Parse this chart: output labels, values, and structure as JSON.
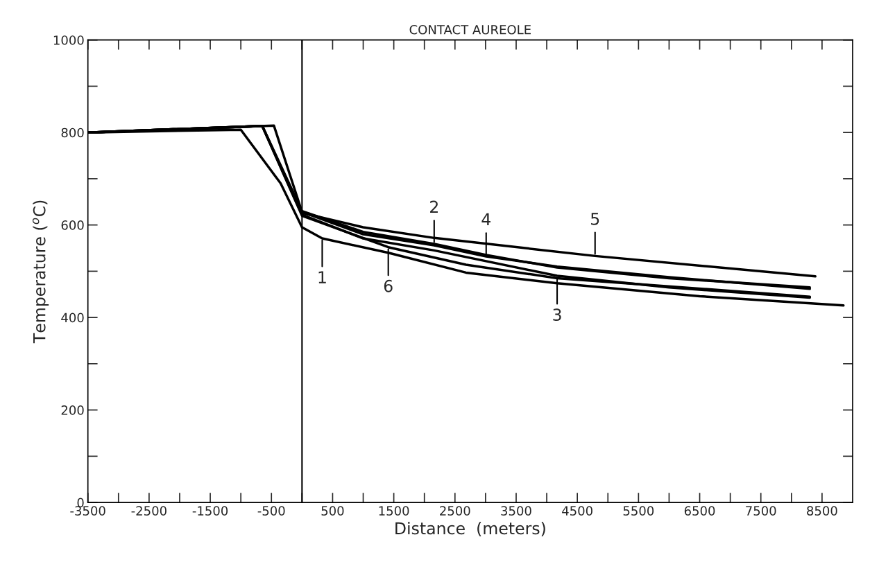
{
  "chart_data": {
    "type": "line",
    "title": "CONTACT AUREOLE",
    "xlabel": "Distance  (meters)",
    "ylabel": "Temperature ($^{o}$C)",
    "series": [
      {
        "color": "#000000",
        "x": [
          -3500,
          -1000,
          -350,
          0,
          330,
          1410,
          2680,
          4170,
          6500,
          8850
        ],
        "values": [
          800,
          806,
          690,
          595,
          571,
          540,
          497,
          474,
          446,
          426
        ]
      },
      {
        "color": "#000000",
        "x": [
          -3500,
          -650,
          0,
          1000,
          2160,
          3010,
          4170,
          6000,
          8300
        ],
        "values": [
          800,
          814,
          630,
          585,
          559,
          535,
          508,
          485,
          465
        ]
      },
      {
        "color": "#000000",
        "x": [
          -3500,
          -650,
          0,
          1000,
          2160,
          4170,
          6000,
          8300
        ],
        "values": [
          800,
          814,
          622,
          571,
          545,
          490,
          465,
          443
        ]
      },
      {
        "color": "#000000",
        "x": [
          -3500,
          -460,
          0,
          1000,
          2160,
          3010,
          4170,
          6000,
          8300
        ],
        "values": [
          800,
          815,
          628,
          580,
          556,
          532,
          510,
          487,
          462
        ]
      },
      {
        "color": "#000000",
        "x": [
          -3500,
          -650,
          0,
          1000,
          2160,
          4790,
          8390
        ],
        "values": [
          800,
          814,
          626,
          595,
          572,
          533,
          489
        ]
      },
      {
        "color": "#000000",
        "x": [
          -3500,
          -650,
          0,
          1410,
          2680,
          4170,
          8300
        ],
        "values": [
          800,
          814,
          620,
          552,
          514,
          485,
          445
        ]
      }
    ],
    "annotations": [
      {
        "text": "1",
        "x": 330,
        "y": 571
      },
      {
        "text": "2",
        "x": 2160,
        "y": 559
      },
      {
        "text": "3",
        "x": 4170,
        "y": 490
      },
      {
        "text": "4",
        "x": 3010,
        "y": 532
      },
      {
        "text": "5",
        "x": 4790,
        "y": 533
      },
      {
        "text": "6",
        "x": 1410,
        "y": 552
      }
    ],
    "ref_lines": [
      {
        "axis": "x",
        "value": 0,
        "color": "#000000"
      }
    ],
    "xlim": [
      -3500,
      9000
    ],
    "ylim": [
      0,
      1000
    ],
    "xticks": [
      -3500,
      {
        "value": -3000,
        "label": null
      },
      -2500,
      {
        "value": -2000,
        "label": null
      },
      -1500,
      {
        "value": -1000,
        "label": null
      },
      -500,
      {
        "value": 0,
        "label": null
      },
      500,
      {
        "value": 1000,
        "label": null
      },
      1500,
      {
        "value": 2000,
        "label": null
      },
      2500,
      {
        "value": 3000,
        "label": null
      },
      3500,
      {
        "value": 4000,
        "label": null
      },
      4500,
      {
        "value": 5000,
        "label": null
      },
      5500,
      {
        "value": 6000,
        "label": null
      },
      6500,
      {
        "value": 7000,
        "label": null
      },
      7500,
      {
        "value": 8000,
        "label": null
      },
      8500
    ],
    "yticks": [
      0,
      {
        "value": 100,
        "label": null
      },
      200,
      {
        "value": 300,
        "label": null
      },
      400,
      {
        "value": 500,
        "label": null
      },
      600,
      {
        "value": 700,
        "label": null
      },
      800,
      {
        "value": 900,
        "label": null
      },
      1000
    ],
    "grid": false,
    "legend": false,
    "marker": "none",
    "line_style": "solid"
  }
}
